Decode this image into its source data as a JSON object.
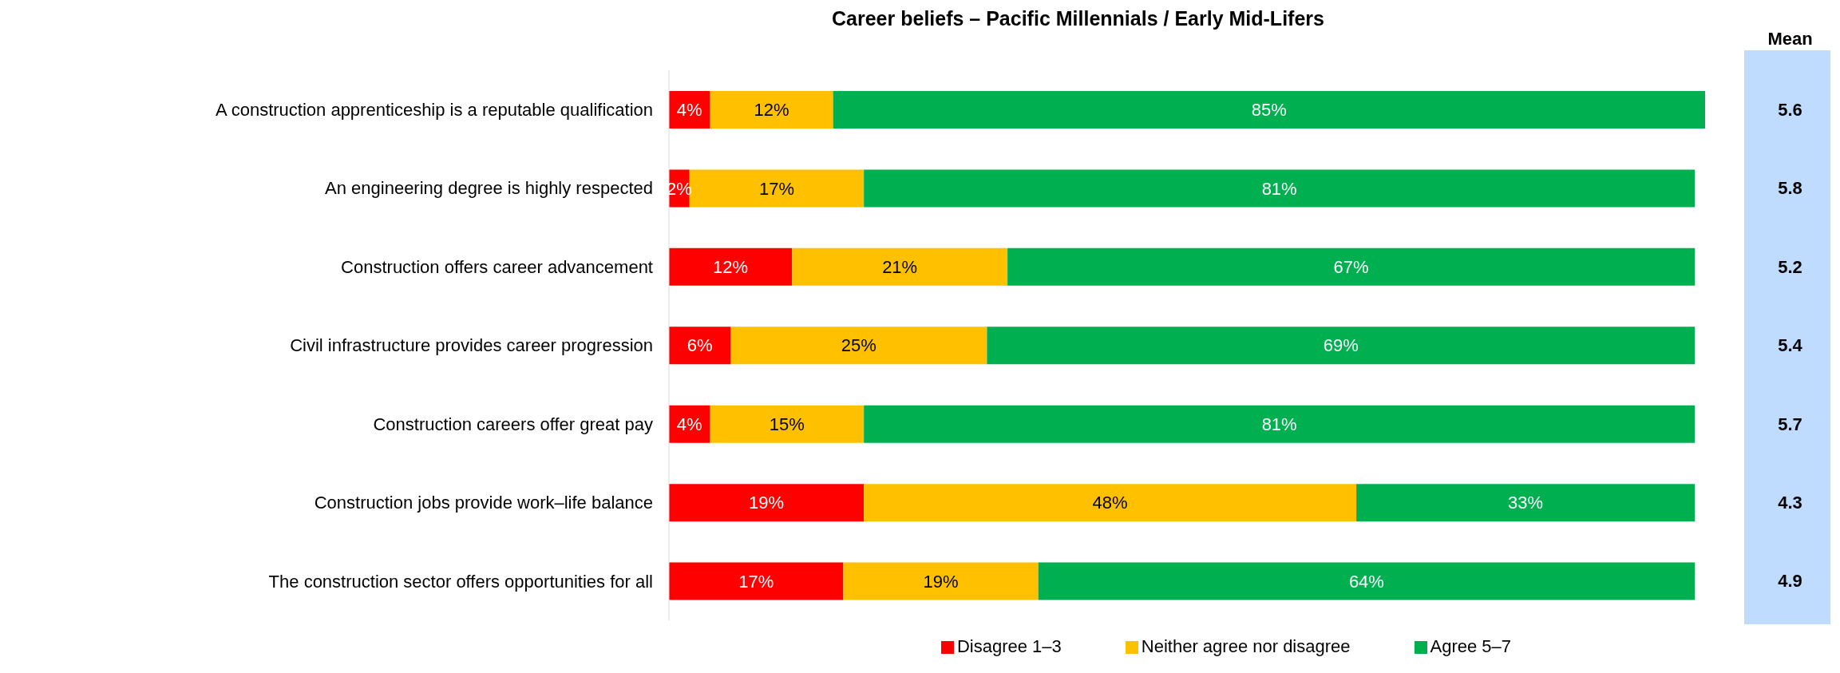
{
  "chart_data": {
    "type": "bar",
    "orientation": "horizontal",
    "stacked": true,
    "title": "Career beliefs – Pacific Millennials / Early Mid-Lifers",
    "categories": [
      "A construction apprenticeship is a reputable qualification",
      "An engineering degree is highly respected",
      "Construction offers career advancement",
      "Civil infrastructure provides career progression",
      "Construction careers offer great pay",
      "Construction jobs provide work–life balance",
      "The construction sector offers opportunities for all"
    ],
    "series": [
      {
        "name": "Disagree 1–3",
        "color": "#ff0000",
        "values": [
          4,
          2,
          12,
          6,
          4,
          19,
          17
        ],
        "value_labels": [
          "4%",
          "2%",
          "12%",
          "6%",
          "4%",
          "19%",
          "17%"
        ]
      },
      {
        "name": "Neither agree nor disagree",
        "color": "#ffc000",
        "values": [
          12,
          17,
          21,
          25,
          15,
          48,
          19
        ],
        "value_labels": [
          "12%",
          "17%",
          "21%",
          "25%",
          "15%",
          "48%",
          "19%"
        ]
      },
      {
        "name": "Agree 5–7",
        "color": "#00b050",
        "values": [
          85,
          81,
          67,
          69,
          81,
          33,
          64
        ],
        "value_labels": [
          "85%",
          "81%",
          "67%",
          "69%",
          "81%",
          "33%",
          "64%"
        ]
      }
    ],
    "tick_labels": "y",
    "legend": "bottom",
    "annotations": [
      "Mean",
      "5.6",
      "5.8",
      "5.2",
      "5.4",
      "5.7",
      "4.3",
      "4.9"
    ]
  }
}
